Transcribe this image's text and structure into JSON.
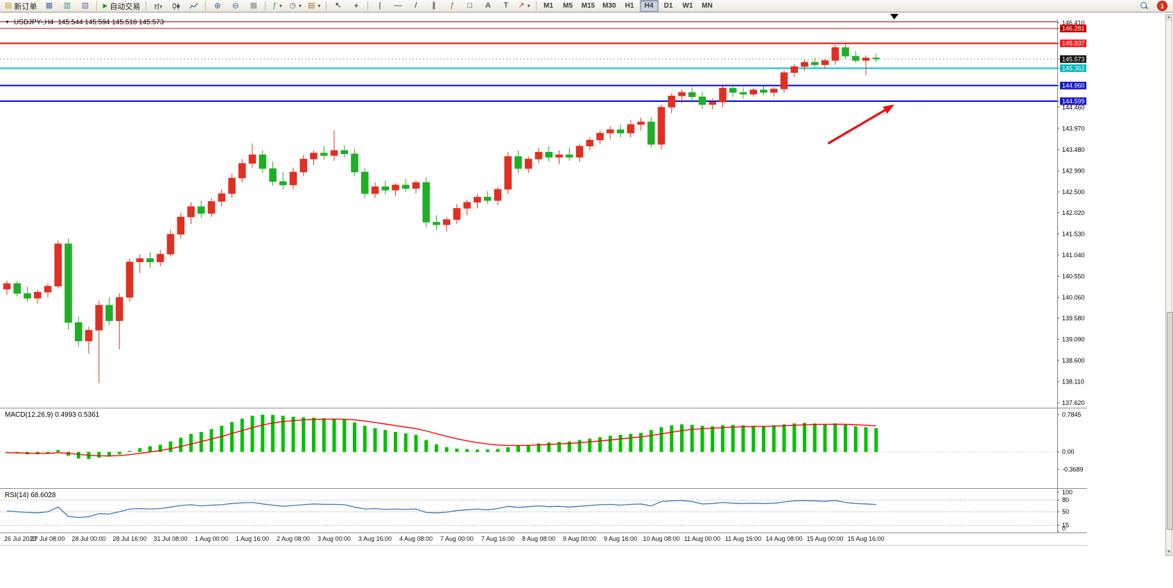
{
  "icons": {
    "new_order": "▤",
    "market_watch": "▦",
    "navigator": "▥",
    "terminal": "▧",
    "auto_trading": "▶",
    "zoom_in": "⊕",
    "zoom_out": "⊖",
    "tile_windows": "▦",
    "indicators": "ƒ",
    "periods": "◷",
    "templates": "▤",
    "dropdown": "▾",
    "cursor": "↖",
    "crosshair": "+",
    "vertical_line": "|",
    "horizontal_line": "—",
    "trendline": "/",
    "channel": "∥",
    "fibonacci": "ƒ",
    "shapes": "□",
    "text": "A",
    "text_label": "T",
    "arrow_tool": "↗",
    "chart_menu": "▼"
  },
  "toolbar": {
    "new_order_label": "新订单",
    "auto_trading_label": "自动交易",
    "timeframes": [
      "M1",
      "M5",
      "M15",
      "M30",
      "H1",
      "H4",
      "D1",
      "W1",
      "MN"
    ],
    "active_timeframe": "H4",
    "notification_count": "1"
  },
  "chart": {
    "symbol_title": "USDJPY-,H4",
    "ohlc": "145.544 145.594 145.518 145.573"
  },
  "price_axis": {
    "ticks": [
      {
        "v": "146.410"
      },
      {
        "v": "146.281",
        "bg": "#c40000"
      },
      {
        "v": "145.937",
        "bg": "#ff1c1c"
      },
      {
        "v": "145.573",
        "bg": "#151515"
      },
      {
        "v": "145.362",
        "bg": "#00b8bc"
      },
      {
        "v": "144.960",
        "bg": "#1818c8"
      },
      {
        "v": "144.599",
        "bg": "#1818c8"
      },
      {
        "v": "144.460"
      },
      {
        "v": "143.970"
      },
      {
        "v": "143.480"
      },
      {
        "v": "142.990"
      },
      {
        "v": "142.500"
      },
      {
        "v": "142.020"
      },
      {
        "v": "141.530"
      },
      {
        "v": "141.040"
      },
      {
        "v": "140.550"
      },
      {
        "v": "140.060"
      },
      {
        "v": "139.580"
      },
      {
        "v": "139.090"
      },
      {
        "v": "138.600"
      },
      {
        "v": "138.110"
      },
      {
        "v": "137.620"
      }
    ]
  },
  "chart_data": [
    {
      "type": "candlestick",
      "title": "USDJPY-,H4",
      "subtitle_ohlc": "145.544 145.594 145.518 145.573",
      "timeframe": "H4",
      "up_color": "#e03022",
      "down_color": "#1fae26",
      "y_axis": {
        "min": 137.62,
        "max": 146.41
      },
      "current_price": 145.573,
      "x_labels": [
        "26 Jul 2023",
        "27 Jul 08:00",
        "28 Jul 00:00",
        "28 Jul 16:00",
        "31 Jul 08:00",
        "1 Aug 00:00",
        "1 Aug 16:00",
        "2 Aug 08:00",
        "3 Aug 00:00",
        "3 Aug 16:00",
        "4 Aug 08:00",
        "7 Aug 00:00",
        "7 Aug 16:00",
        "8 Aug 08:00",
        "9 Aug 00:00",
        "9 Aug 16:00",
        "10 Aug 08:00",
        "11 Aug 00:00",
        "11 Aug 16:00",
        "14 Aug 08:00",
        "15 Aug 00:00",
        "15 Aug 16:00"
      ],
      "candles_per_label": 4,
      "hlines": [
        {
          "price": 146.435,
          "color": "#a80000",
          "width": 1
        },
        {
          "price": 146.281,
          "color": "#d40000",
          "width": 1
        },
        {
          "price": 145.937,
          "color": "#ff0000",
          "width": 2
        },
        {
          "price": 145.362,
          "color": "#00c4c8",
          "width": 2
        },
        {
          "price": 144.96,
          "color": "#0000d8",
          "width": 2
        },
        {
          "price": 144.599,
          "color": "#0000d8",
          "width": 2
        }
      ],
      "arrow": {
        "from_idx": 80.3,
        "from_price": 143.62,
        "to_idx": 86.8,
        "to_price": 144.52,
        "color": "#e81010"
      },
      "candles": [
        [
          140.25,
          140.45,
          140.12,
          140.38
        ],
        [
          140.38,
          140.44,
          140.08,
          140.15
        ],
        [
          140.15,
          140.3,
          139.96,
          140.04
        ],
        [
          140.04,
          140.24,
          139.92,
          140.18
        ],
        [
          140.18,
          140.38,
          140.06,
          140.32
        ],
        [
          140.32,
          141.38,
          140.26,
          141.3
        ],
        [
          141.3,
          141.42,
          139.32,
          139.48
        ],
        [
          139.48,
          139.62,
          138.92,
          139.05
        ],
        [
          139.05,
          139.38,
          138.76,
          139.3
        ],
        [
          139.3,
          139.98,
          138.08,
          139.88
        ],
        [
          139.88,
          140.06,
          139.42,
          139.52
        ],
        [
          139.52,
          140.16,
          138.86,
          140.06
        ],
        [
          140.06,
          140.96,
          139.96,
          140.88
        ],
        [
          140.88,
          141.06,
          140.62,
          140.96
        ],
        [
          140.96,
          141.1,
          140.74,
          140.88
        ],
        [
          140.88,
          141.16,
          140.78,
          141.06
        ],
        [
          141.06,
          141.62,
          141.0,
          141.52
        ],
        [
          141.52,
          142.02,
          141.42,
          141.92
        ],
        [
          141.92,
          142.26,
          141.76,
          142.16
        ],
        [
          142.16,
          142.3,
          141.9,
          142.0
        ],
        [
          142.0,
          142.36,
          141.92,
          142.28
        ],
        [
          142.28,
          142.56,
          142.16,
          142.46
        ],
        [
          142.46,
          142.92,
          142.36,
          142.82
        ],
        [
          142.82,
          143.26,
          142.72,
          143.16
        ],
        [
          143.16,
          143.62,
          143.06,
          143.36
        ],
        [
          143.36,
          143.46,
          142.94,
          143.04
        ],
        [
          143.04,
          143.2,
          142.64,
          142.74
        ],
        [
          142.74,
          142.96,
          142.56,
          142.66
        ],
        [
          142.66,
          143.06,
          142.56,
          142.96
        ],
        [
          142.96,
          143.36,
          142.86,
          143.26
        ],
        [
          143.26,
          143.46,
          143.12,
          143.4
        ],
        [
          143.4,
          143.56,
          143.24,
          143.34
        ],
        [
          143.34,
          143.92,
          143.22,
          143.46
        ],
        [
          143.46,
          143.58,
          143.3,
          143.38
        ],
        [
          143.38,
          143.5,
          142.86,
          142.96
        ],
        [
          142.96,
          143.06,
          142.36,
          142.46
        ],
        [
          142.46,
          142.72,
          142.36,
          142.62
        ],
        [
          142.62,
          142.76,
          142.44,
          142.54
        ],
        [
          142.54,
          142.7,
          142.4,
          142.66
        ],
        [
          142.66,
          142.8,
          142.5,
          142.58
        ],
        [
          142.58,
          142.76,
          142.46,
          142.72
        ],
        [
          142.72,
          142.84,
          141.68,
          141.8
        ],
        [
          141.8,
          141.96,
          141.62,
          141.74
        ],
        [
          141.74,
          141.92,
          141.58,
          141.86
        ],
        [
          141.86,
          142.22,
          141.76,
          142.12
        ],
        [
          142.12,
          142.32,
          141.96,
          142.26
        ],
        [
          142.26,
          142.46,
          142.12,
          142.38
        ],
        [
          142.38,
          142.52,
          142.22,
          142.3
        ],
        [
          142.3,
          142.62,
          142.2,
          142.56
        ],
        [
          142.56,
          143.42,
          142.46,
          143.32
        ],
        [
          143.32,
          143.46,
          142.94,
          143.04
        ],
        [
          143.04,
          143.32,
          142.94,
          143.26
        ],
        [
          143.26,
          143.52,
          143.16,
          143.42
        ],
        [
          143.42,
          143.56,
          143.2,
          143.3
        ],
        [
          143.3,
          143.46,
          143.14,
          143.36
        ],
        [
          143.36,
          143.52,
          143.22,
          143.3
        ],
        [
          143.3,
          143.62,
          143.2,
          143.56
        ],
        [
          143.56,
          143.76,
          143.46,
          143.7
        ],
        [
          143.7,
          143.92,
          143.6,
          143.86
        ],
        [
          143.86,
          144.02,
          143.72,
          143.94
        ],
        [
          143.94,
          144.06,
          143.76,
          143.86
        ],
        [
          143.86,
          144.16,
          143.76,
          144.06
        ],
        [
          144.06,
          144.22,
          143.92,
          144.12
        ],
        [
          144.12,
          144.24,
          143.52,
          143.6
        ],
        [
          143.6,
          144.52,
          143.48,
          144.46
        ],
        [
          144.46,
          144.78,
          144.32,
          144.72
        ],
        [
          144.72,
          144.86,
          144.56,
          144.8
        ],
        [
          144.8,
          144.92,
          144.62,
          144.7
        ],
        [
          144.7,
          144.82,
          144.42,
          144.52
        ],
        [
          144.52,
          144.66,
          144.4,
          144.58
        ],
        [
          144.58,
          144.96,
          144.46,
          144.9
        ],
        [
          144.9,
          145.0,
          144.7,
          144.8
        ],
        [
          144.8,
          144.92,
          144.66,
          144.76
        ],
        [
          144.76,
          144.9,
          144.7,
          144.86
        ],
        [
          144.86,
          144.96,
          144.74,
          144.8
        ],
        [
          144.8,
          144.92,
          144.7,
          144.88
        ],
        [
          144.88,
          145.32,
          144.8,
          145.26
        ],
        [
          145.26,
          145.46,
          145.16,
          145.4
        ],
        [
          145.4,
          145.56,
          145.3,
          145.5
        ],
        [
          145.5,
          145.6,
          145.38,
          145.44
        ],
        [
          145.44,
          145.58,
          145.34,
          145.54
        ],
        [
          145.54,
          145.9,
          145.44,
          145.84
        ],
        [
          145.84,
          145.92,
          145.58,
          145.64
        ],
        [
          145.64,
          145.76,
          145.48,
          145.54
        ],
        [
          145.54,
          145.66,
          145.2,
          145.6
        ],
        [
          145.6,
          145.7,
          145.5,
          145.573
        ]
      ]
    },
    {
      "type": "histogram+line",
      "name": "MACD",
      "params": "(12,26,9)",
      "value_main": "0.4993",
      "value_signal": "0.5361",
      "histogram_color": "#00c000",
      "signal_color": "#ff0000",
      "scale_ticks": [
        "0.7845",
        "0.00",
        "-0.3689"
      ],
      "values": [
        -0.02,
        -0.03,
        -0.05,
        -0.05,
        -0.03,
        0.04,
        -0.08,
        -0.14,
        -0.15,
        -0.12,
        -0.1,
        -0.05,
        0.02,
        0.08,
        0.12,
        0.15,
        0.22,
        0.3,
        0.38,
        0.42,
        0.48,
        0.55,
        0.63,
        0.7,
        0.76,
        0.785,
        0.78,
        0.76,
        0.74,
        0.73,
        0.72,
        0.71,
        0.7,
        0.68,
        0.62,
        0.55,
        0.5,
        0.46,
        0.42,
        0.39,
        0.36,
        0.25,
        0.16,
        0.1,
        0.07,
        0.06,
        0.05,
        0.05,
        0.06,
        0.1,
        0.13,
        0.15,
        0.18,
        0.2,
        0.21,
        0.22,
        0.25,
        0.28,
        0.31,
        0.34,
        0.36,
        0.38,
        0.4,
        0.46,
        0.52,
        0.56,
        0.58,
        0.57,
        0.55,
        0.54,
        0.56,
        0.57,
        0.56,
        0.55,
        0.55,
        0.56,
        0.58,
        0.6,
        0.61,
        0.6,
        0.59,
        0.6,
        0.57,
        0.54,
        0.52,
        0.4993
      ]
    },
    {
      "type": "line",
      "name": "RSI",
      "params": "(14)",
      "value": "68.6028",
      "line_color": "#3c78b4",
      "levels": [
        80,
        50,
        15
      ],
      "scale_ticks": [
        "100",
        "80",
        "50",
        "15",
        "0"
      ],
      "values": [
        52,
        50,
        48,
        47,
        50,
        62,
        38,
        35,
        37,
        45,
        44,
        50,
        57,
        58,
        57,
        58,
        62,
        66,
        68,
        65,
        67,
        68,
        71,
        73,
        74,
        70,
        67,
        64,
        66,
        68,
        70,
        69,
        69,
        68,
        62,
        57,
        58,
        56,
        57,
        56,
        57,
        48,
        47,
        49,
        53,
        55,
        57,
        55,
        58,
        64,
        61,
        63,
        65,
        63,
        64,
        62,
        64,
        66,
        68,
        69,
        67,
        69,
        70,
        65,
        76,
        78,
        79,
        76,
        70,
        71,
        74,
        72,
        71,
        72,
        71,
        72,
        75,
        78,
        79,
        78,
        77,
        79,
        74,
        71,
        70,
        68.6
      ]
    }
  ]
}
